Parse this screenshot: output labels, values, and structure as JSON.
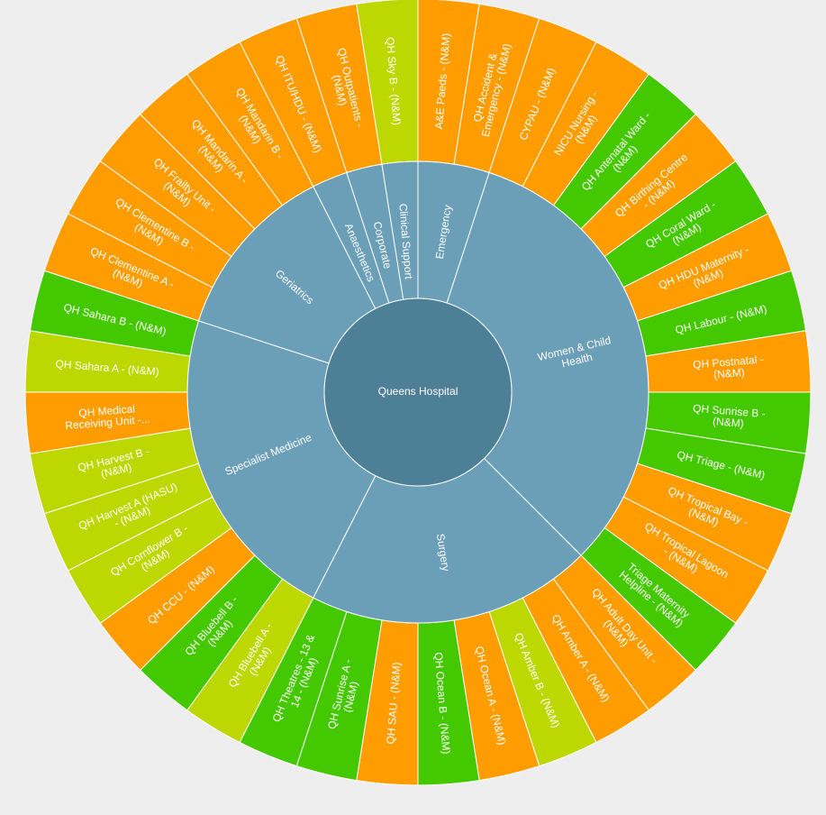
{
  "chart_data": {
    "type": "sunburst",
    "root": "Queens Hospital",
    "colors": {
      "root": "#4d7f96",
      "division": "#6b9fb8",
      "orange": "#ff9c00",
      "green": "#44c800",
      "lime": "#bcd800"
    },
    "divisions": [
      {
        "name": "Emergency",
        "label_lines": [
          "Emergency"
        ],
        "wards": [
          {
            "label_lines": [
              "A&E Paeds - (N&M)"
            ],
            "status": "orange"
          },
          {
            "label_lines": [
              "QH Accident &",
              "Emergency - (N&M)"
            ],
            "status": "orange"
          }
        ]
      },
      {
        "name": "Women & Child Health",
        "label_lines": [
          "Women & Child",
          "Health"
        ],
        "wards": [
          {
            "label_lines": [
              "CYPAU - (N&M)"
            ],
            "status": "orange"
          },
          {
            "label_lines": [
              "NICU Nursing -",
              "(N&M)"
            ],
            "status": "orange"
          },
          {
            "label_lines": [
              "QH Antenatal Ward -",
              "(N&M)"
            ],
            "status": "green"
          },
          {
            "label_lines": [
              "QH Birthing Centre",
              "- (N&M)"
            ],
            "status": "orange"
          },
          {
            "label_lines": [
              "QH Coral Ward -",
              "(N&M)"
            ],
            "status": "green"
          },
          {
            "label_lines": [
              "QH HDU Maternity -",
              "(N&M)"
            ],
            "status": "orange"
          },
          {
            "label_lines": [
              "QH Labour - (N&M)"
            ],
            "status": "green"
          },
          {
            "label_lines": [
              "QH Postnatal -",
              "(N&M)"
            ],
            "status": "orange"
          },
          {
            "label_lines": [
              "QH Sunrise B -",
              "(N&M)"
            ],
            "status": "green"
          },
          {
            "label_lines": [
              "QH Triage - (N&M)"
            ],
            "status": "green"
          },
          {
            "label_lines": [
              "QH Tropical Bay -",
              "(N&M)"
            ],
            "status": "orange"
          },
          {
            "label_lines": [
              "QH Tropical Lagoon",
              "- (N&M)"
            ],
            "status": "orange"
          },
          {
            "label_lines": [
              "Triage Maternity",
              "Helpline - (N&M)"
            ],
            "status": "green"
          }
        ]
      },
      {
        "name": "Surgery",
        "label_lines": [
          "Surgery"
        ],
        "wards": [
          {
            "label_lines": [
              "QH Adult Day Unit -",
              "(N&M)"
            ],
            "status": "orange"
          },
          {
            "label_lines": [
              "QH Amber A - (N&M)"
            ],
            "status": "orange"
          },
          {
            "label_lines": [
              "QH Amber B - (N&M)"
            ],
            "status": "lime"
          },
          {
            "label_lines": [
              "QH Ocean A - (N&M)"
            ],
            "status": "orange"
          },
          {
            "label_lines": [
              "QH Ocean B - (N&M)"
            ],
            "status": "green"
          },
          {
            "label_lines": [
              "QH SAU - (N&M)"
            ],
            "status": "orange"
          },
          {
            "label_lines": [
              "QH Sunrise A -",
              "(N&M)"
            ],
            "status": "green"
          },
          {
            "label_lines": [
              "QH Theatres - 13 &",
              "14 - (N&M)"
            ],
            "status": "green"
          }
        ]
      },
      {
        "name": "Specialist Medicine",
        "label_lines": [
          "Specialist Medicine"
        ],
        "wards": [
          {
            "label_lines": [
              "QH Bluebell A -",
              "(N&M)"
            ],
            "status": "lime"
          },
          {
            "label_lines": [
              "QH Bluebell B -",
              "(N&M)"
            ],
            "status": "green"
          },
          {
            "label_lines": [
              "QH CCU - (N&M)"
            ],
            "status": "orange"
          },
          {
            "label_lines": [
              "QH Cornflower B -",
              "(N&M)"
            ],
            "status": "lime"
          },
          {
            "label_lines": [
              "QH Harvest A (HASU)",
              "- (N&M)"
            ],
            "status": "lime"
          },
          {
            "label_lines": [
              "QH Harvest B -",
              "(N&M)"
            ],
            "status": "lime"
          },
          {
            "label_lines": [
              "QH Medical",
              "Receiving Unit -..."
            ],
            "status": "orange"
          },
          {
            "label_lines": [
              "QH Sahara A - (N&M)"
            ],
            "status": "lime"
          },
          {
            "label_lines": [
              "QH Sahara B - (N&M)"
            ],
            "status": "green"
          }
        ]
      },
      {
        "name": "Geriatrics",
        "label_lines": [
          "Geriatrics"
        ],
        "wards": [
          {
            "label_lines": [
              "QH Clementine A -",
              "(N&M)"
            ],
            "status": "orange"
          },
          {
            "label_lines": [
              "QH Clementine B -",
              "(N&M)"
            ],
            "status": "orange"
          },
          {
            "label_lines": [
              "QH Frailty Unit -",
              "(N&M)"
            ],
            "status": "orange"
          },
          {
            "label_lines": [
              "QH Mandarin A -",
              "(N&M)"
            ],
            "status": "orange"
          },
          {
            "label_lines": [
              "QH Mandarin B -",
              "(N&M)"
            ],
            "status": "orange"
          }
        ]
      },
      {
        "name": "Anaesthetics",
        "label_lines": [
          "Anaesthetics"
        ],
        "wards": [
          {
            "label_lines": [
              "QH ITU/HDU - (N&M)"
            ],
            "status": "orange"
          }
        ]
      },
      {
        "name": "Corporate",
        "label_lines": [
          "Corporate"
        ],
        "wards": [
          {
            "label_lines": [
              "QH Outpatients -",
              "(N&M)"
            ],
            "status": "orange"
          }
        ]
      },
      {
        "name": "Clinical Support",
        "label_lines": [
          "Clinical Support"
        ],
        "wards": [
          {
            "label_lines": [
              "QH Sky B - (N&M)"
            ],
            "status": "lime"
          }
        ]
      }
    ]
  }
}
